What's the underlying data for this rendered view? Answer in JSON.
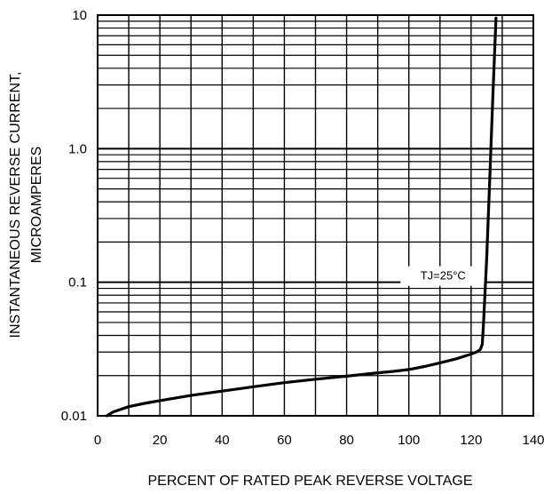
{
  "chart_data": {
    "type": "line",
    "xlabel": "PERCENT OF RATED PEAK REVERSE VOLTAGE",
    "ylabel_line1": "INSTANTANEOUS REVERSE CURRENT,",
    "ylabel_line2": "MICROAMPERES",
    "xlim": [
      0,
      140
    ],
    "ylim": [
      0.01,
      10
    ],
    "yscale": "log",
    "grid": true,
    "x_ticks": [
      0,
      20,
      40,
      60,
      80,
      100,
      120,
      140
    ],
    "x_tick_labels": [
      "0",
      "20",
      "40",
      "60",
      "80",
      "100",
      "120",
      "140"
    ],
    "y_ticks": [
      0.01,
      0.1,
      1.0,
      10
    ],
    "y_tick_labels": [
      "0.01",
      "0.1",
      "1.0",
      "10"
    ],
    "annotation": "TJ=25°C",
    "annotation_at": {
      "x": 111,
      "y": 0.1
    },
    "series": [
      {
        "color": "#000000",
        "x": [
          3,
          5,
          10,
          15,
          20,
          30,
          40,
          50,
          60,
          70,
          80,
          90,
          95,
          100,
          105,
          110,
          115,
          120,
          122,
          123,
          123.6,
          124,
          125,
          126,
          127,
          128
        ],
        "y": [
          0.01,
          0.0107,
          0.0117,
          0.0124,
          0.013,
          0.0142,
          0.0153,
          0.0165,
          0.0177,
          0.0188,
          0.0198,
          0.021,
          0.0215,
          0.0222,
          0.0234,
          0.0249,
          0.0266,
          0.029,
          0.0302,
          0.0315,
          0.0345,
          0.05,
          0.15,
          0.6,
          2.5,
          9.5
        ]
      }
    ]
  }
}
